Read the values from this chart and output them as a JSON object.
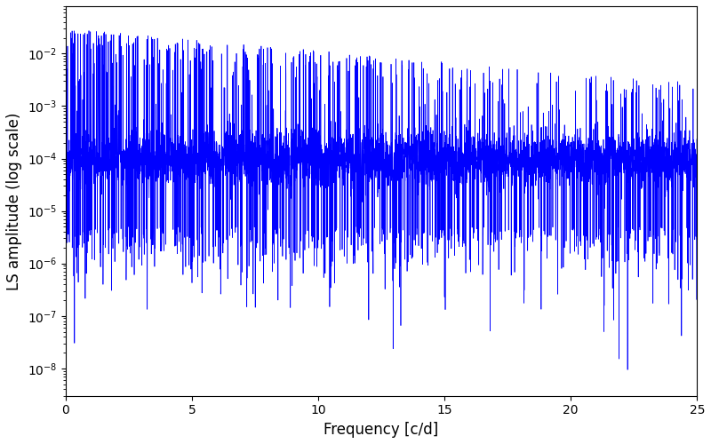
{
  "title": "",
  "xlabel": "Frequency [c/d]",
  "ylabel": "LS amplitude (log scale)",
  "xlim": [
    0,
    25
  ],
  "ylim": [
    3e-09,
    0.08
  ],
  "xticks": [
    0,
    5,
    10,
    15,
    20,
    25
  ],
  "line_color": "#0000FF",
  "line_width": 0.5,
  "background_color": "#ffffff",
  "seed": 12345,
  "n_points": 5000,
  "freq_max": 25.0,
  "base_amplitude": 0.0001,
  "figsize": [
    8.0,
    5.0
  ],
  "dpi": 100
}
